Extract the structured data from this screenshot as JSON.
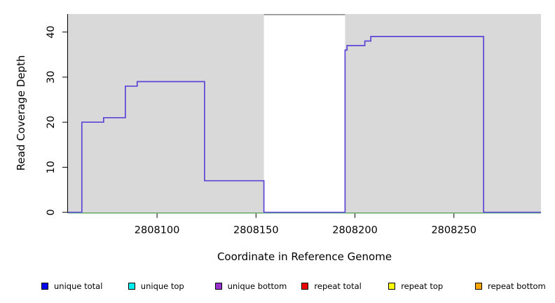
{
  "chart_data": {
    "type": "area",
    "title": "",
    "xlabel": "Coordinate in Reference Genome",
    "ylabel": "Read Coverage Depth",
    "xlim": [
      2808055,
      2808294
    ],
    "ylim": [
      0,
      44
    ],
    "x_ticks": [
      2808100,
      2808150,
      2808200,
      2808250
    ],
    "y_ticks": [
      0,
      10,
      20,
      30,
      40
    ],
    "grid": false,
    "plot_bg_color": "#d9d9d9",
    "axis_color": "#000000",
    "series": [
      {
        "name": "coverage-step",
        "style": "step",
        "color": "#5b45d6",
        "points": [
          [
            2808055,
            0
          ],
          [
            2808062,
            20
          ],
          [
            2808073,
            21
          ],
          [
            2808084,
            28
          ],
          [
            2808090,
            29
          ],
          [
            2808124,
            7
          ],
          [
            2808154,
            0
          ],
          [
            2808195,
            36
          ],
          [
            2808196,
            37
          ],
          [
            2808205,
            38
          ],
          [
            2808208,
            39
          ],
          [
            2808265,
            0
          ],
          [
            2808294,
            0
          ]
        ]
      },
      {
        "name": "zero-baseline",
        "style": "hline",
        "color": "#7ccd7c",
        "y": 0
      }
    ],
    "mask_region": {
      "x1": 2808154,
      "x2": 2808195,
      "fill": "#ffffff",
      "top_border_color": "#8c8c8c"
    },
    "legend_position": "bottom",
    "legend": [
      {
        "label": "unique total",
        "color": "#0000ee"
      },
      {
        "label": "unique top",
        "color": "#00eeee"
      },
      {
        "label": "unique bottom",
        "color": "#9932cc"
      },
      {
        "label": "repeat total",
        "color": "#ee0000"
      },
      {
        "label": "repeat top",
        "color": "#ffff00"
      },
      {
        "label": "repeat bottom",
        "color": "#ffa500"
      }
    ]
  }
}
